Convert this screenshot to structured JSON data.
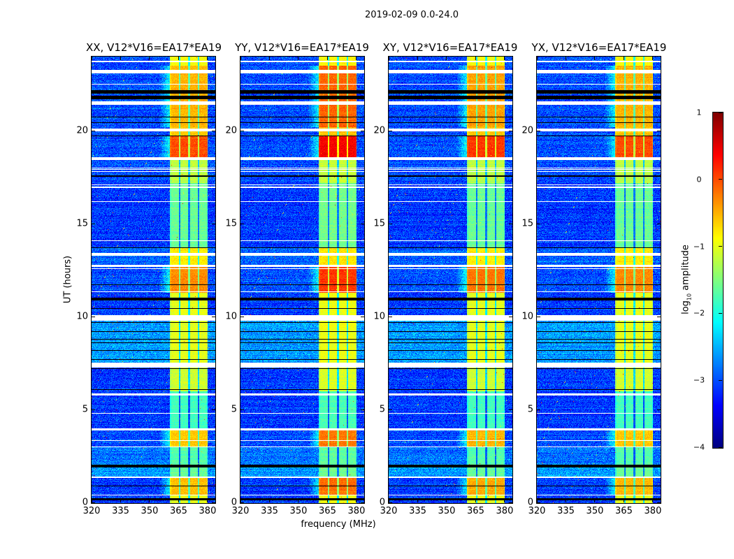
{
  "chart_data": {
    "type": "heatmap",
    "title": "2019-02-09 0.0-24.0",
    "xlabel": "frequency (MHz)",
    "ylabel": "UT (hours)",
    "xlim": [
      320,
      384
    ],
    "ylim": [
      0,
      24
    ],
    "xticks": [
      "320",
      "335",
      "350",
      "365",
      "380"
    ],
    "yticks": [
      "0",
      "5",
      "10",
      "15",
      "20"
    ],
    "panels": [
      {
        "title": "XX, V12*V16=EA17*EA19",
        "band_adjust": 0.0,
        "strong_adjust": 0.0
      },
      {
        "title": "YY, V12*V16=EA17*EA19",
        "band_adjust": 0.05,
        "strong_adjust": 0.35
      },
      {
        "title": "XY, V12*V16=EA17*EA19",
        "band_adjust": 0.0,
        "strong_adjust": 0.1
      },
      {
        "title": "YX, V12*V16=EA17*EA19",
        "band_adjust": 0.0,
        "strong_adjust": 0.0
      }
    ],
    "colorbar": {
      "label_prefix": "log",
      "label_sub": "10",
      "label_suffix": " amplitude",
      "range": [
        -4,
        1
      ],
      "ticks": [
        "1",
        "0",
        "−1",
        "−2",
        "−3",
        "−4"
      ],
      "tick_values": [
        1,
        0,
        -1,
        -2,
        -3,
        -4
      ],
      "colormap": "jet"
    },
    "band": {
      "start_mhz": 360.5,
      "end_mhz": 380.2,
      "subband_edges_mhz": [
        365.5,
        370.5,
        375.3
      ]
    },
    "segments": [
      {
        "ut": [
          0.0,
          0.4
        ],
        "background": -3.1,
        "band": -1.0,
        "strong": false
      },
      {
        "ut": [
          0.4,
          1.4
        ],
        "background": -3.1,
        "band": -0.55,
        "strong": true
      },
      {
        "ut": [
          1.4,
          2.0
        ],
        "background": -2.6,
        "band": -1.6,
        "strong": false
      },
      {
        "ut": [
          2.0,
          3.0
        ],
        "background": -2.8,
        "band": -1.7,
        "strong": false
      },
      {
        "ut": [
          3.0,
          4.0
        ],
        "background": -3.0,
        "band": -0.6,
        "strong": true
      },
      {
        "ut": [
          4.0,
          6.0
        ],
        "background": -3.1,
        "band": -1.8,
        "strong": false
      },
      {
        "ut": [
          6.0,
          7.3
        ],
        "background": -3.1,
        "band": -1.1,
        "strong": false
      },
      {
        "ut": [
          7.5,
          10.0
        ],
        "background": -2.6,
        "band": -1.0,
        "strong": false
      },
      {
        "ut": [
          10.0,
          11.3
        ],
        "background": -3.1,
        "band": -1.0,
        "strong": false
      },
      {
        "ut": [
          11.3,
          12.8
        ],
        "background": -3.0,
        "band": -0.3,
        "strong": true
      },
      {
        "ut": [
          12.8,
          13.7
        ],
        "background": -2.9,
        "band": -0.8,
        "strong": false
      },
      {
        "ut": [
          13.7,
          17.2
        ],
        "background": -3.1,
        "band": -1.6,
        "strong": false
      },
      {
        "ut": [
          17.2,
          18.45
        ],
        "background": -3.0,
        "band": -1.2,
        "strong": false
      },
      {
        "ut": [
          18.6,
          19.7
        ],
        "background": -3.0,
        "band": 0.0,
        "strong": true
      },
      {
        "ut": [
          19.7,
          20.2
        ],
        "background": -3.0,
        "band": -0.6,
        "strong": false
      },
      {
        "ut": [
          20.2,
          21.6
        ],
        "background": -3.0,
        "band": -0.5,
        "strong": true
      },
      {
        "ut": [
          21.6,
          23.5
        ],
        "background": -3.0,
        "band": -0.5,
        "strong": true
      },
      {
        "ut": [
          23.5,
          24.0
        ],
        "background": -3.0,
        "band": -0.9,
        "strong": false
      }
    ],
    "flagged_white_ut": [
      [
        0.4,
        0.45
      ],
      [
        1.35,
        1.42
      ],
      [
        3.0,
        3.04
      ],
      [
        3.34,
        3.37
      ],
      [
        3.44,
        3.47
      ],
      [
        3.59,
        3.62
      ],
      [
        3.9,
        4.0
      ],
      [
        4.8,
        4.83
      ],
      [
        5.8,
        5.9
      ],
      [
        7.3,
        7.55
      ],
      [
        8.4,
        8.43
      ],
      [
        9.0,
        9.03
      ],
      [
        9.8,
        10.1
      ],
      [
        11.33,
        11.38
      ],
      [
        12.7,
        12.8
      ],
      [
        12.6,
        12.63
      ],
      [
        13.3,
        13.45
      ],
      [
        14.1,
        14.13
      ],
      [
        15.65,
        15.68
      ],
      [
        16.2,
        16.23
      ],
      [
        16.95,
        17.0
      ],
      [
        17.08,
        17.12
      ],
      [
        17.8,
        17.83
      ],
      [
        17.93,
        17.96
      ],
      [
        18.0,
        18.03
      ],
      [
        18.45,
        18.6
      ],
      [
        20.0,
        20.12
      ],
      [
        21.4,
        21.6
      ],
      [
        22.5,
        22.53
      ],
      [
        23.1,
        23.3
      ],
      [
        23.7,
        23.78
      ]
    ],
    "gap_black_ut": [
      [
        0.15,
        0.25
      ],
      [
        0.9,
        0.93
      ],
      [
        1.9,
        2.05
      ],
      [
        6.1,
        6.14
      ],
      [
        7.2,
        7.26
      ],
      [
        7.7,
        7.73
      ],
      [
        7.95,
        7.98
      ],
      [
        8.2,
        8.23
      ],
      [
        8.6,
        8.63
      ],
      [
        8.8,
        8.83
      ],
      [
        9.2,
        9.23
      ],
      [
        9.45,
        9.48
      ],
      [
        9.7,
        9.74
      ],
      [
        10.45,
        10.49
      ],
      [
        10.9,
        11.05
      ],
      [
        11.7,
        11.74
      ],
      [
        13.7,
        13.75
      ],
      [
        17.55,
        17.6
      ],
      [
        19.7,
        19.75
      ],
      [
        20.45,
        20.48
      ],
      [
        20.75,
        20.78
      ],
      [
        21.7,
        21.9
      ],
      [
        22.0,
        22.2
      ]
    ]
  }
}
